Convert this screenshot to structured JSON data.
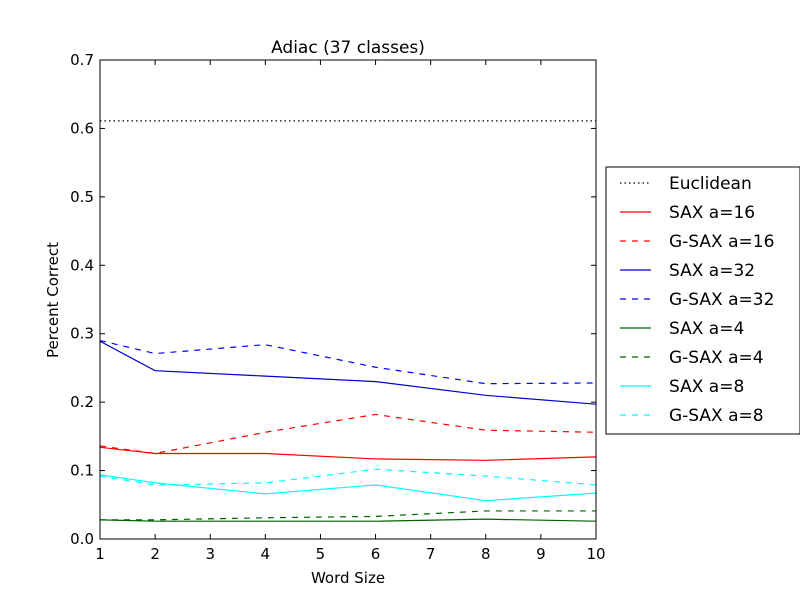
{
  "chart_data": {
    "type": "line",
    "title": "Adiac (37 classes)",
    "xlabel": "Word Size",
    "ylabel": "Percent Correct",
    "xlim": [
      1,
      10
    ],
    "ylim": [
      0.0,
      0.7
    ],
    "xticks": [
      1,
      2,
      3,
      4,
      5,
      6,
      7,
      8,
      9,
      10
    ],
    "yticks": [
      0.0,
      0.1,
      0.2,
      0.3,
      0.4,
      0.5,
      0.6,
      0.7
    ],
    "ytick_labels": [
      "0.0",
      "0.1",
      "0.2",
      "0.3",
      "0.4",
      "0.5",
      "0.6",
      "0.7"
    ],
    "grid": false,
    "legend_position": "outside-right",
    "x": [
      1,
      2,
      4,
      6,
      8,
      10
    ],
    "series": [
      {
        "name": "Euclidean",
        "color": "#000000",
        "style": "dotted",
        "values": [
          0.611,
          0.611,
          0.611,
          0.611,
          0.611,
          0.611
        ]
      },
      {
        "name": "SAX a=16",
        "color": "#ff0000",
        "style": "solid",
        "values": [
          0.134,
          0.125,
          0.125,
          0.117,
          0.115,
          0.12
        ]
      },
      {
        "name": "G-SAX a=16",
        "color": "#ff0000",
        "style": "dashed",
        "values": [
          0.136,
          0.125,
          0.156,
          0.182,
          0.159,
          0.156
        ]
      },
      {
        "name": "SAX a=32",
        "color": "#0000cc",
        "style": "solid",
        "values": [
          0.289,
          0.246,
          0.238,
          0.23,
          0.21,
          0.197
        ]
      },
      {
        "name": "G-SAX a=32",
        "color": "#0000ff",
        "style": "dashed",
        "values": [
          0.29,
          0.271,
          0.284,
          0.251,
          0.227,
          0.228
        ]
      },
      {
        "name": "SAX a=4",
        "color": "#006400",
        "style": "solid",
        "values": [
          0.028,
          0.026,
          0.026,
          0.026,
          0.029,
          0.026
        ]
      },
      {
        "name": "G-SAX a=4",
        "color": "#006400",
        "style": "dashed",
        "values": [
          0.028,
          0.028,
          0.031,
          0.033,
          0.041,
          0.041
        ]
      },
      {
        "name": "SAX a=8",
        "color": "#00ffff",
        "style": "solid",
        "values": [
          0.094,
          0.082,
          0.066,
          0.079,
          0.056,
          0.067
        ]
      },
      {
        "name": "G-SAX a=8",
        "color": "#00ffff",
        "style": "dashed",
        "values": [
          0.092,
          0.079,
          0.082,
          0.102,
          0.092,
          0.079
        ]
      }
    ]
  }
}
